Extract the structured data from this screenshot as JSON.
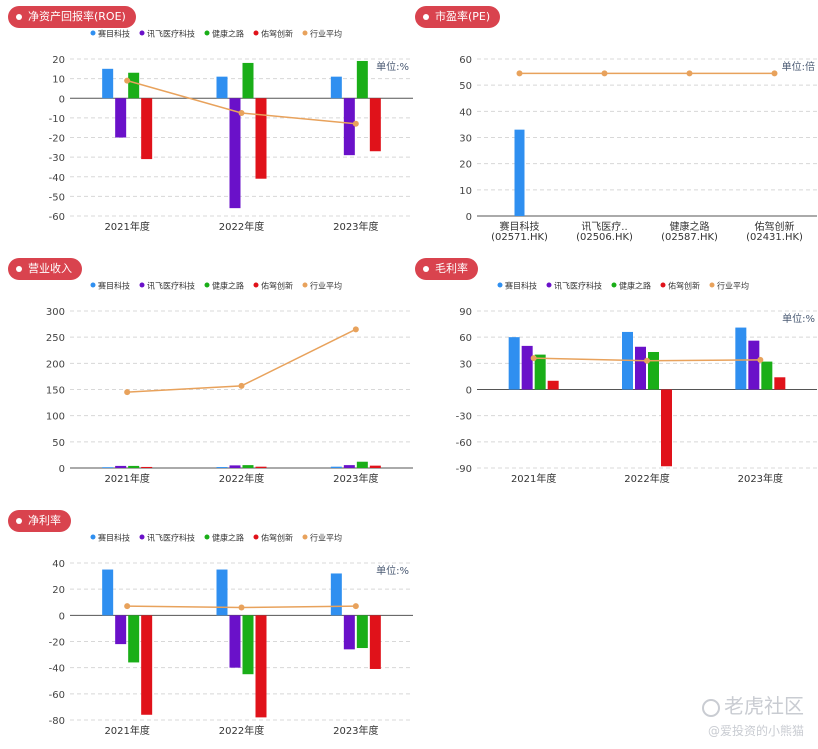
{
  "panels": {
    "roe": {
      "title": "净资产回报率(ROE)"
    },
    "pe": {
      "title": "市盈率(PE)"
    },
    "revenue": {
      "title": "营业收入"
    },
    "gross": {
      "title": "毛利率"
    },
    "net": {
      "title": "净利率"
    }
  },
  "legend": {
    "items": [
      "赛目科技",
      "讯飞医疗科技",
      "健康之路",
      "佑驾创新",
      "行业平均"
    ],
    "colors": [
      "#2f8ff0",
      "#6a11c9",
      "#1aae18",
      "#e0121a",
      "#e8a25c"
    ]
  },
  "watermark": {
    "brand": "老虎社区",
    "author": "@爱投资的小熊猫"
  },
  "chart_data": [
    {
      "id": "roe",
      "type": "bar",
      "categories": [
        "2021年度",
        "2022年度",
        "2023年度"
      ],
      "unit": "单位:%",
      "ylim": [
        -60,
        20
      ],
      "yticks": [
        20,
        10,
        0,
        -10,
        -20,
        -30,
        -40,
        -50,
        -60
      ],
      "series": [
        {
          "name": "赛目科技",
          "values": [
            15,
            11,
            11
          ]
        },
        {
          "name": "讯飞医疗科技",
          "values": [
            -20,
            -56,
            -29
          ]
        },
        {
          "name": "健康之路",
          "values": [
            13,
            18,
            19
          ]
        },
        {
          "name": "佑驾创新",
          "values": [
            -31,
            -41,
            -27
          ]
        }
      ],
      "line": {
        "name": "行业平均",
        "values": [
          9,
          -7.5,
          -13
        ]
      }
    },
    {
      "id": "pe",
      "type": "bar",
      "categories": [
        "赛目科技\n(02571.HK)",
        "讯飞医疗..\n(02506.HK)",
        "健康之路\n(02587.HK)",
        "佑驾创新\n(02431.HK)"
      ],
      "unit": "单位:倍",
      "ylim": [
        0,
        60
      ],
      "yticks": [
        60,
        50,
        40,
        30,
        20,
        10,
        0
      ],
      "series": [
        {
          "name": "赛目科技",
          "values": [
            33,
            0,
            0,
            0
          ]
        }
      ],
      "line": {
        "name": "行业平均",
        "values": [
          54.5,
          54.5,
          54.5,
          54.5
        ]
      }
    },
    {
      "id": "revenue",
      "type": "bar",
      "categories": [
        "2021年度",
        "2022年度",
        "2023年度"
      ],
      "unit": "",
      "ylim": [
        0,
        300
      ],
      "yticks": [
        300,
        250,
        200,
        150,
        100,
        50,
        0
      ],
      "series": [
        {
          "name": "赛目科技",
          "values": [
            1.5,
            1.8,
            2.5
          ]
        },
        {
          "name": "讯飞医疗科技",
          "values": [
            4,
            5,
            5.5
          ]
        },
        {
          "name": "健康之路",
          "values": [
            4,
            5.5,
            12
          ]
        },
        {
          "name": "佑驾创新",
          "values": [
            2,
            2.5,
            4.5
          ]
        }
      ],
      "line": {
        "name": "行业平均",
        "values": [
          145,
          157,
          265
        ]
      }
    },
    {
      "id": "gross",
      "type": "bar",
      "categories": [
        "2021年度",
        "2022年度",
        "2023年度"
      ],
      "unit": "单位:%",
      "ylim": [
        -90,
        90
      ],
      "yticks": [
        90,
        60,
        30,
        0,
        -30,
        -60,
        -90
      ],
      "series": [
        {
          "name": "赛目科技",
          "values": [
            60,
            66,
            71
          ]
        },
        {
          "name": "讯飞医疗科技",
          "values": [
            50,
            49,
            56
          ]
        },
        {
          "name": "健康之路",
          "values": [
            40,
            43,
            32
          ]
        },
        {
          "name": "佑驾创新",
          "values": [
            10,
            -88,
            14
          ]
        }
      ],
      "line": {
        "name": "行业平均",
        "values": [
          36,
          33,
          34
        ]
      }
    },
    {
      "id": "net",
      "type": "bar",
      "categories": [
        "2021年度",
        "2022年度",
        "2023年度"
      ],
      "unit": "单位:%",
      "ylim": [
        -80,
        40
      ],
      "yticks": [
        40,
        20,
        0,
        -20,
        -40,
        -60,
        -80
      ],
      "series": [
        {
          "name": "赛目科技",
          "values": [
            35,
            35,
            32
          ]
        },
        {
          "name": "讯飞医疗科技",
          "values": [
            -22,
            -40,
            -26
          ]
        },
        {
          "name": "健康之路",
          "values": [
            -36,
            -45,
            -25
          ]
        },
        {
          "name": "佑驾创新",
          "values": [
            -76,
            -78,
            -41
          ]
        }
      ],
      "line": {
        "name": "行业平均",
        "values": [
          7,
          6,
          7
        ]
      }
    }
  ]
}
